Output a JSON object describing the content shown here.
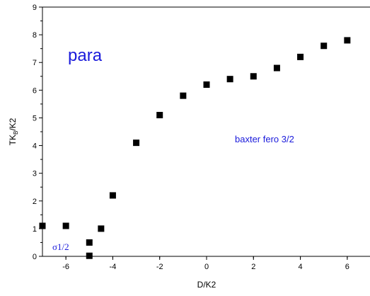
{
  "chart_data": {
    "type": "scatter",
    "title": "",
    "xlabel": "D/K2",
    "ylabel": {
      "main": "TK",
      "sub": "B",
      "tail": "/K2"
    },
    "xlim": [
      -7,
      7
    ],
    "ylim": [
      0,
      9
    ],
    "xticks": [
      -6,
      -4,
      -2,
      0,
      2,
      4,
      6
    ],
    "yticks": [
      0,
      1,
      2,
      3,
      4,
      5,
      6,
      7,
      8,
      9
    ],
    "grid": false,
    "marker": "square",
    "marker_color": "#000000",
    "annotation_color": "#1a1adb",
    "annotations": {
      "para": "para",
      "baxter": "baxter fero 3/2",
      "sigma": "σ1/2"
    },
    "series": [
      {
        "x": [
          -7,
          -6,
          -5,
          -5,
          -4.5,
          -4,
          -3,
          -2,
          -1,
          0,
          1,
          2,
          3,
          4,
          5,
          6
        ],
        "y": [
          1.1,
          1.1,
          0.5,
          0.02,
          1.0,
          2.2,
          4.1,
          5.1,
          5.8,
          6.2,
          6.4,
          6.5,
          6.8,
          7.2,
          7.6,
          7.8
        ]
      }
    ]
  }
}
